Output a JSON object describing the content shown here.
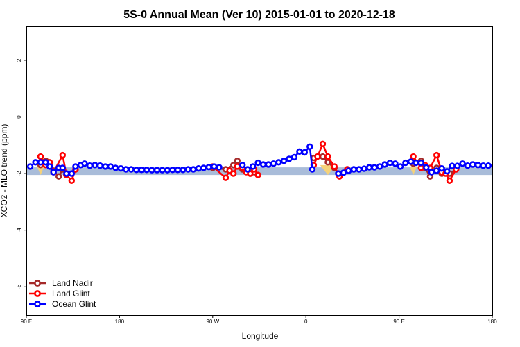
{
  "chart_data": {
    "type": "line",
    "title": "5S-0 Annual Mean (Ver 10)   2015-01-01 to 2020-12-18",
    "xlabel": "Longitude",
    "ylabel": "XCO2 - MLO trend (ppm)",
    "xlim": [
      90,
      450
    ],
    "ylim": [
      -7,
      3.2
    ],
    "x_ticks": [
      {
        "value": 90,
        "label": "90 E"
      },
      {
        "value": 162,
        "label": "180"
      },
      {
        "value": 234,
        "label": "90 W"
      },
      {
        "value": 306,
        "label": "0"
      },
      {
        "value": 378,
        "label": "90 E"
      },
      {
        "value": 450,
        "label": "180"
      }
    ],
    "y_ticks": [
      {
        "value": 2,
        "label": "2"
      },
      {
        "value": 0,
        "label": "0"
      },
      {
        "value": -2,
        "label": "-2"
      },
      {
        "value": -4,
        "label": "-4"
      },
      {
        "value": -6,
        "label": "-6"
      }
    ],
    "band": {
      "low": -2.05,
      "high": -1.78,
      "color": "#a9bcd9"
    },
    "triangles": [
      {
        "x": 101,
        "y_top": -1.78,
        "y_bottom": -2.05,
        "half_width": 2.5,
        "color": "#f5d27a"
      },
      {
        "x": 323,
        "y_top": -1.7,
        "y_bottom": -2.05,
        "half_width": 6,
        "color": "#f5d27a"
      },
      {
        "x": 389,
        "y_top": -1.78,
        "y_bottom": -2.05,
        "half_width": 2.5,
        "color": "#f5d27a"
      }
    ],
    "legend": {
      "position": "bottom-left"
    },
    "series": [
      {
        "name": "Land Nadir",
        "color": "#a52a2a",
        "segments": [
          [
            [
              101,
              -1.7
            ],
            [
              105,
              -1.55
            ],
            [
              108,
              -1.7
            ],
            [
              111,
              -1.9
            ],
            [
              115,
              -2.1
            ],
            [
              118,
              -1.85
            ],
            [
              121,
              -2.05
            ],
            [
              128,
              -1.85
            ]
          ],
          [
            [
              234,
              -1.8
            ],
            [
              244,
              -1.85
            ],
            [
              250,
              -1.7
            ],
            [
              253,
              -1.55
            ],
            [
              257,
              -1.85
            ],
            [
              263,
              -2.0
            ],
            [
              266,
              -1.95
            ]
          ],
          [
            [
              312,
              -1.45
            ],
            [
              319,
              -1.4
            ],
            [
              323,
              -1.6
            ],
            [
              328,
              -1.8
            ],
            [
              332,
              -2.05
            ],
            [
              338,
              -1.85
            ]
          ],
          [
            [
              389,
              -1.65
            ],
            [
              395,
              -1.55
            ],
            [
              398,
              -1.8
            ],
            [
              402,
              -2.1
            ],
            [
              407,
              -1.8
            ],
            [
              411,
              -2.0
            ],
            [
              417,
              -2.0
            ],
            [
              422,
              -1.85
            ]
          ]
        ]
      },
      {
        "name": "Land Glint",
        "color": "#ff0000",
        "segments": [
          [
            [
              101,
              -1.4
            ],
            [
              105,
              -1.7
            ],
            [
              108,
              -1.6
            ],
            [
              111,
              -1.95
            ],
            [
              118,
              -1.35
            ],
            [
              121,
              -2.05
            ],
            [
              125,
              -2.25
            ],
            [
              128,
              -1.85
            ]
          ],
          [
            [
              234,
              -1.75
            ],
            [
              244,
              -2.15
            ],
            [
              247,
              -1.9
            ],
            [
              250,
              -2.0
            ],
            [
              253,
              -1.75
            ],
            [
              257,
              -1.8
            ],
            [
              260,
              -1.95
            ],
            [
              263,
              -2.0
            ],
            [
              266,
              -1.85
            ],
            [
              269,
              -2.05
            ]
          ],
          [
            [
              312,
              -1.7
            ],
            [
              315,
              -1.4
            ],
            [
              319,
              -0.95
            ],
            [
              323,
              -1.4
            ],
            [
              328,
              -1.75
            ],
            [
              332,
              -2.1
            ],
            [
              338,
              -1.85
            ]
          ],
          [
            [
              389,
              -1.4
            ],
            [
              395,
              -1.8
            ],
            [
              398,
              -1.7
            ],
            [
              402,
              -1.8
            ],
            [
              407,
              -1.35
            ],
            [
              411,
              -1.95
            ],
            [
              414,
              -2.0
            ],
            [
              417,
              -2.25
            ],
            [
              422,
              -1.85
            ]
          ]
        ]
      },
      {
        "name": "Ocean Glint",
        "color": "#0000ff",
        "segments": [
          [
            [
              93,
              -1.75
            ],
            [
              97,
              -1.6
            ],
            [
              101,
              -1.6
            ],
            [
              105,
              -1.6
            ],
            [
              108,
              -1.75
            ],
            [
              111,
              -1.95
            ],
            [
              115,
              -1.8
            ],
            [
              118,
              -1.8
            ],
            [
              121,
              -2.0
            ],
            [
              125,
              -2.0
            ],
            [
              128,
              -1.75
            ],
            [
              132,
              -1.7
            ],
            [
              135,
              -1.65
            ],
            [
              139,
              -1.72
            ],
            [
              143,
              -1.7
            ],
            [
              147,
              -1.72
            ],
            [
              151,
              -1.75
            ],
            [
              155,
              -1.75
            ],
            [
              159,
              -1.8
            ],
            [
              163,
              -1.82
            ],
            [
              167,
              -1.85
            ],
            [
              171,
              -1.85
            ],
            [
              175,
              -1.87
            ],
            [
              179,
              -1.87
            ],
            [
              183,
              -1.87
            ],
            [
              187,
              -1.88
            ],
            [
              191,
              -1.88
            ],
            [
              195,
              -1.88
            ],
            [
              199,
              -1.88
            ],
            [
              203,
              -1.87
            ],
            [
              207,
              -1.87
            ],
            [
              211,
              -1.87
            ],
            [
              215,
              -1.85
            ],
            [
              219,
              -1.85
            ],
            [
              223,
              -1.82
            ],
            [
              227,
              -1.8
            ],
            [
              231,
              -1.77
            ],
            [
              235,
              -1.75
            ],
            [
              239,
              -1.78
            ]
          ],
          [
            [
              257,
              -1.7
            ],
            [
              261,
              -1.85
            ],
            [
              265,
              -1.75
            ],
            [
              269,
              -1.62
            ],
            [
              273,
              -1.68
            ],
            [
              277,
              -1.68
            ],
            [
              281,
              -1.65
            ],
            [
              285,
              -1.6
            ],
            [
              289,
              -1.55
            ],
            [
              293,
              -1.48
            ],
            [
              297,
              -1.42
            ],
            [
              301,
              -1.22
            ],
            [
              305,
              -1.25
            ],
            [
              309,
              -1.05
            ],
            [
              311,
              -1.85
            ]
          ],
          [
            [
              331,
              -2.0
            ],
            [
              335,
              -1.97
            ],
            [
              339,
              -1.9
            ],
            [
              343,
              -1.85
            ],
            [
              347,
              -1.85
            ],
            [
              351,
              -1.83
            ],
            [
              355,
              -1.78
            ],
            [
              359,
              -1.78
            ],
            [
              363,
              -1.75
            ],
            [
              367,
              -1.68
            ],
            [
              371,
              -1.62
            ],
            [
              375,
              -1.65
            ],
            [
              379,
              -1.75
            ],
            [
              383,
              -1.62
            ],
            [
              387,
              -1.58
            ],
            [
              391,
              -1.62
            ],
            [
              395,
              -1.62
            ],
            [
              399,
              -1.78
            ],
            [
              403,
              -1.95
            ],
            [
              407,
              -1.9
            ],
            [
              411,
              -1.82
            ],
            [
              415,
              -1.92
            ],
            [
              419,
              -1.73
            ],
            [
              423,
              -1.73
            ],
            [
              427,
              -1.65
            ],
            [
              431,
              -1.72
            ],
            [
              435,
              -1.68
            ],
            [
              439,
              -1.7
            ],
            [
              443,
              -1.72
            ],
            [
              447,
              -1.72
            ]
          ]
        ]
      }
    ]
  }
}
